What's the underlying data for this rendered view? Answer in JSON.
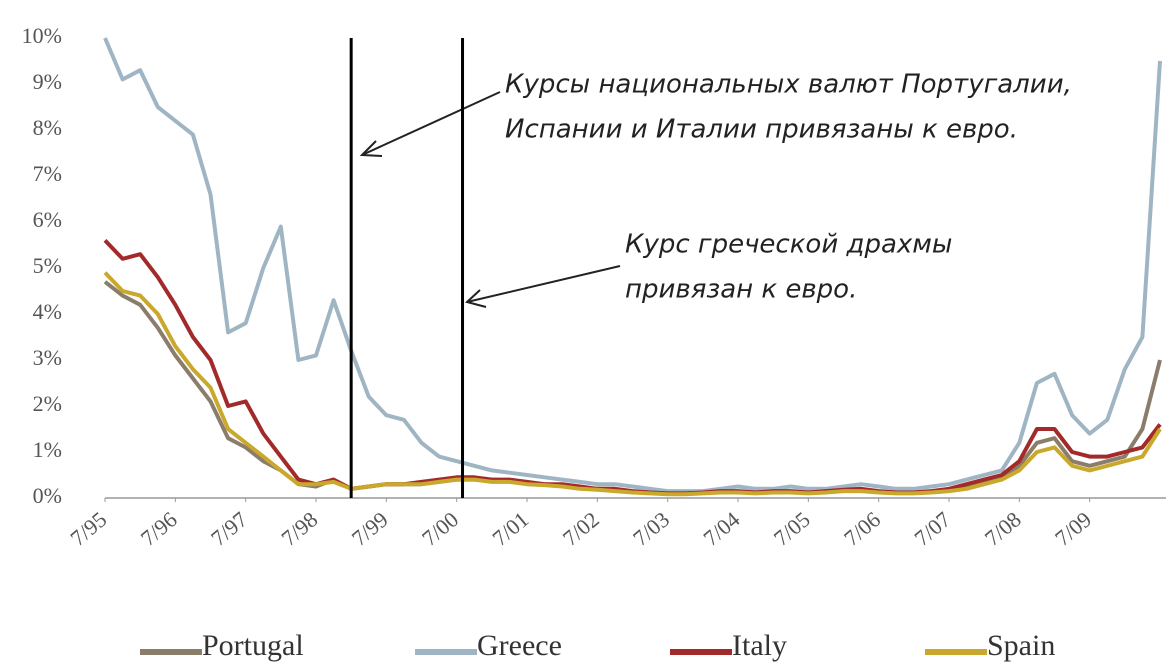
{
  "chart_data": {
    "type": "line",
    "x": [
      "1995-07",
      "1995-10",
      "1996-01",
      "1996-04",
      "1996-07",
      "1996-10",
      "1997-01",
      "1997-04",
      "1997-07",
      "1997-10",
      "1998-01",
      "1998-04",
      "1998-07",
      "1998-10",
      "1999-01",
      "1999-04",
      "1999-07",
      "1999-10",
      "2000-01",
      "2000-04",
      "2000-07",
      "2000-10",
      "2001-01",
      "2001-04",
      "2001-07",
      "2001-10",
      "2002-01",
      "2002-04",
      "2002-07",
      "2002-10",
      "2003-01",
      "2003-04",
      "2003-07",
      "2003-10",
      "2004-01",
      "2004-04",
      "2004-07",
      "2004-10",
      "2005-01",
      "2005-04",
      "2005-07",
      "2005-10",
      "2006-01",
      "2006-04",
      "2006-07",
      "2006-10",
      "2007-01",
      "2007-04",
      "2007-07",
      "2007-10",
      "2008-01",
      "2008-04",
      "2008-07",
      "2008-10",
      "2009-01",
      "2009-04",
      "2009-07",
      "2009-10",
      "2010-01",
      "2010-04",
      "2010-07"
    ],
    "series": [
      {
        "name": "Greece",
        "color": "#9fb5c4",
        "values": [
          10,
          9.1,
          9.3,
          8.5,
          8.2,
          7.9,
          6.6,
          3.6,
          3.8,
          5.0,
          5.9,
          3.0,
          3.1,
          4.3,
          3.2,
          2.2,
          1.8,
          1.7,
          1.2,
          0.9,
          0.8,
          0.7,
          0.6,
          0.55,
          0.5,
          0.45,
          0.4,
          0.35,
          0.3,
          0.3,
          0.25,
          0.2,
          0.15,
          0.15,
          0.15,
          0.2,
          0.25,
          0.2,
          0.2,
          0.25,
          0.2,
          0.2,
          0.25,
          0.3,
          0.25,
          0.2,
          0.2,
          0.25,
          0.3,
          0.4,
          0.5,
          0.6,
          1.2,
          2.5,
          2.7,
          1.8,
          1.4,
          1.7,
          2.8,
          3.5,
          9.5
        ]
      },
      {
        "name": "Portugal",
        "color": "#8b7d6b",
        "values": [
          4.7,
          4.4,
          4.2,
          3.7,
          3.1,
          2.6,
          2.1,
          1.3,
          1.1,
          0.8,
          0.6,
          0.3,
          0.25,
          0.4,
          0.2,
          0.25,
          0.3,
          0.3,
          0.3,
          0.35,
          0.4,
          0.4,
          0.4,
          0.38,
          0.33,
          0.3,
          0.28,
          0.22,
          0.2,
          0.17,
          0.14,
          0.12,
          0.1,
          0.1,
          0.11,
          0.14,
          0.14,
          0.12,
          0.14,
          0.14,
          0.12,
          0.14,
          0.16,
          0.18,
          0.14,
          0.12,
          0.12,
          0.14,
          0.18,
          0.25,
          0.35,
          0.45,
          0.7,
          1.2,
          1.3,
          0.8,
          0.7,
          0.8,
          0.9,
          1.5,
          3.0
        ]
      },
      {
        "name": "Italy",
        "color": "#a32a2a",
        "values": [
          5.6,
          5.2,
          5.3,
          4.8,
          4.2,
          3.5,
          3.0,
          2.0,
          2.1,
          1.4,
          0.9,
          0.4,
          0.3,
          0.4,
          0.2,
          0.25,
          0.3,
          0.3,
          0.35,
          0.4,
          0.45,
          0.45,
          0.4,
          0.4,
          0.35,
          0.3,
          0.3,
          0.25,
          0.2,
          0.2,
          0.15,
          0.12,
          0.1,
          0.1,
          0.12,
          0.15,
          0.15,
          0.12,
          0.15,
          0.15,
          0.12,
          0.15,
          0.18,
          0.2,
          0.15,
          0.12,
          0.12,
          0.15,
          0.2,
          0.3,
          0.4,
          0.5,
          0.8,
          1.5,
          1.5,
          1.0,
          0.9,
          0.9,
          1.0,
          1.1,
          1.6
        ]
      },
      {
        "name": "Spain",
        "color": "#c9a82c",
        "values": [
          4.9,
          4.5,
          4.4,
          4.0,
          3.3,
          2.8,
          2.4,
          1.5,
          1.2,
          0.9,
          0.6,
          0.3,
          0.3,
          0.35,
          0.2,
          0.25,
          0.3,
          0.3,
          0.3,
          0.35,
          0.4,
          0.4,
          0.35,
          0.35,
          0.3,
          0.28,
          0.25,
          0.2,
          0.18,
          0.15,
          0.12,
          0.1,
          0.08,
          0.08,
          0.1,
          0.12,
          0.12,
          0.1,
          0.12,
          0.12,
          0.1,
          0.12,
          0.15,
          0.15,
          0.12,
          0.1,
          0.1,
          0.12,
          0.15,
          0.2,
          0.3,
          0.4,
          0.6,
          1.0,
          1.1,
          0.7,
          0.6,
          0.7,
          0.8,
          0.9,
          1.5
        ]
      }
    ],
    "xlim": [
      "1995-07",
      "2010-07"
    ],
    "xticks": [
      {
        "value": "1995-07",
        "label": "7/95"
      },
      {
        "value": "1996-07",
        "label": "7/96"
      },
      {
        "value": "1997-07",
        "label": "7/97"
      },
      {
        "value": "1998-07",
        "label": "7/98"
      },
      {
        "value": "1999-07",
        "label": "7/99"
      },
      {
        "value": "2000-07",
        "label": "7/00"
      },
      {
        "value": "2001-07",
        "label": "7/01"
      },
      {
        "value": "2002-07",
        "label": "7/02"
      },
      {
        "value": "2003-07",
        "label": "7/03"
      },
      {
        "value": "2004-07",
        "label": "7/04"
      },
      {
        "value": "2005-07",
        "label": "7/05"
      },
      {
        "value": "2006-07",
        "label": "7/06"
      },
      {
        "value": "2007-07",
        "label": "7/07"
      },
      {
        "value": "2008-07",
        "label": "7/08"
      },
      {
        "value": "2009-07",
        "label": "7/09"
      }
    ],
    "ylim": [
      0,
      10
    ],
    "yticks": [
      {
        "value": 0,
        "label": "0%"
      },
      {
        "value": 1,
        "label": "1%"
      },
      {
        "value": 2,
        "label": "2%"
      },
      {
        "value": 3,
        "label": "3%"
      },
      {
        "value": 4,
        "label": "4%"
      },
      {
        "value": 5,
        "label": "5%"
      },
      {
        "value": 6,
        "label": "6%"
      },
      {
        "value": 7,
        "label": "7%"
      },
      {
        "value": 8,
        "label": "8%"
      },
      {
        "value": 9,
        "label": "9%"
      },
      {
        "value": 10,
        "label": "10%"
      }
    ],
    "vlines": [
      "1999-01",
      "2000-08"
    ],
    "annotations": [
      {
        "lines": [
          "Курсы национальных валют Португалии,",
          "Испании и Италии привязаны к евро."
        ]
      },
      {
        "lines": [
          "Курс греческой драхмы",
          "привязан к евро."
        ]
      }
    ],
    "legend": "bottom"
  }
}
